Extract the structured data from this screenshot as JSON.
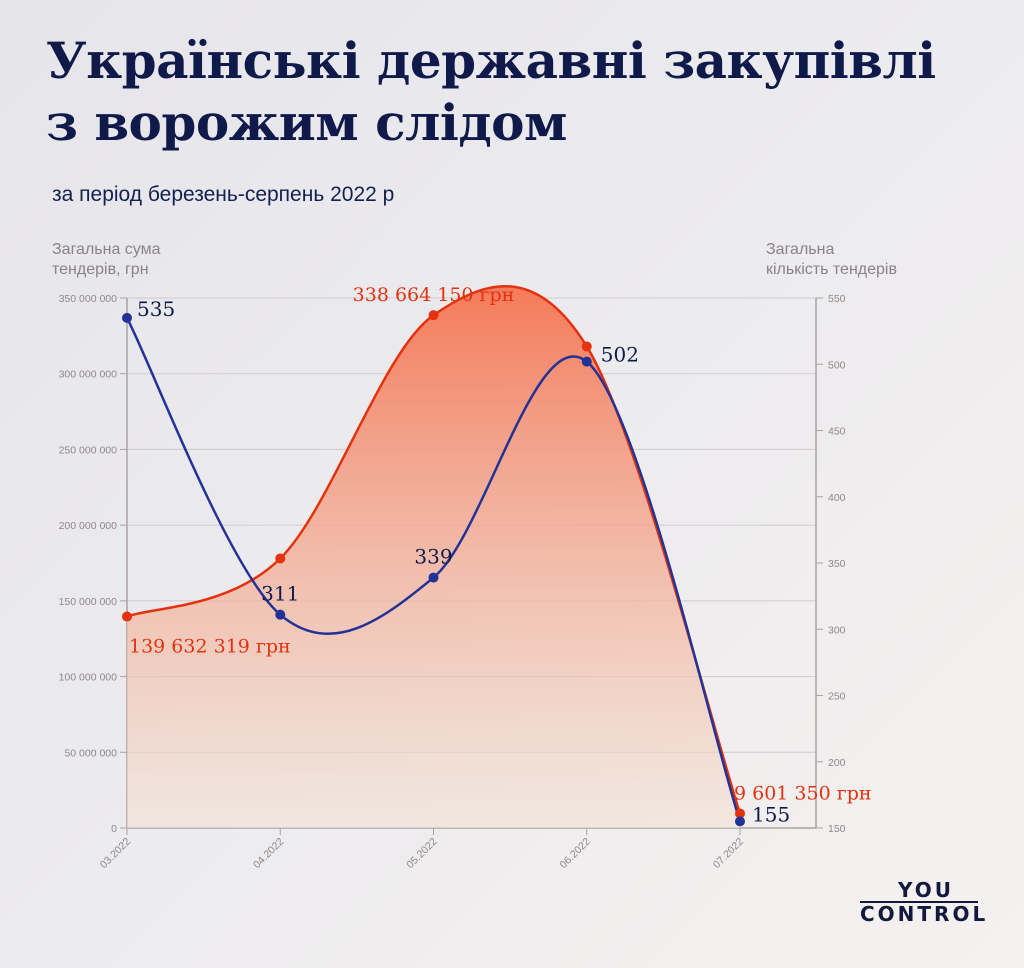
{
  "title_lines": [
    "Українські державні закупівлі",
    "з ворожим слідом"
  ],
  "subtitle": "за період березень-серпень 2022 р",
  "logo": {
    "line1": "YOU",
    "line2": "CONTROL"
  },
  "colors": {
    "sum": "#e4320f",
    "count": "#233296",
    "title": "#0f1a4a",
    "fill_top": "#f47a5a",
    "fill_bottom": "#f2e3d6"
  },
  "chart_data": {
    "type": "line",
    "categories": [
      "03.2022",
      "04.2022",
      "05.2022",
      "06.2022",
      "07.2022"
    ],
    "y_left": {
      "label": [
        "Загальна сума",
        "тендерів, грн"
      ],
      "range": [
        0,
        350000000
      ],
      "ticks": [
        "0",
        "50 000 000",
        "100 000 000",
        "150 000 000",
        "200 000 000",
        "250 000 000",
        "300 000 000",
        "350 000 000"
      ]
    },
    "y_right": {
      "label": [
        "Загальна",
        "кількість тендерів"
      ],
      "range": [
        150,
        550
      ],
      "ticks": [
        "150",
        "200",
        "250",
        "300",
        "350",
        "400",
        "450",
        "500",
        "550"
      ]
    },
    "grid": true,
    "series": [
      {
        "axis": "left",
        "style": "area",
        "values": [
          139632319,
          178000000,
          338664150,
          318000000,
          9601350
        ],
        "data_labels": [
          "139 632 319 грн",
          "",
          "338 664 150 грн",
          "",
          "9 601 350 грн"
        ]
      },
      {
        "axis": "right",
        "style": "line",
        "values": [
          535,
          311,
          339,
          502,
          155
        ],
        "data_labels": [
          "535",
          "311",
          "339",
          "502",
          "155"
        ]
      }
    ]
  }
}
